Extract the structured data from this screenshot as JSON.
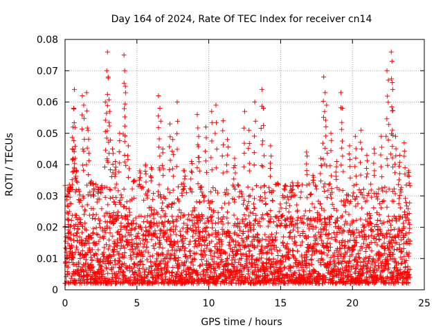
{
  "chart_data": {
    "type": "scatter",
    "title": "Day 164 of 2024, Rate Of TEC Index for receiver cn14",
    "xlabel": "GPS time / hours",
    "ylabel": "ROTI / TECUs",
    "xlim": [
      0,
      25
    ],
    "ylim": [
      0,
      0.08
    ],
    "xticks": [
      0,
      5,
      10,
      15,
      20,
      25
    ],
    "yticks": [
      0,
      0.01,
      0.02,
      0.03,
      0.04,
      0.05,
      0.06,
      0.07,
      0.08
    ],
    "xtick_labels": [
      "0",
      "5",
      "10",
      "15",
      "20",
      "25"
    ],
    "ytick_labels": [
      "0",
      "0.01",
      "0.02",
      "0.03",
      "0.04",
      "0.05",
      "0.06",
      "0.07",
      "0.08"
    ],
    "grid": true,
    "marker": "+",
    "color": "#ff0000",
    "series": [
      {
        "name": "ROTI",
        "points": [
          [
            0.1,
            0.012
          ],
          [
            0.2,
            0.018
          ],
          [
            0.3,
            0.025
          ],
          [
            0.4,
            0.032
          ],
          [
            0.5,
            0.045
          ],
          [
            0.55,
            0.052
          ],
          [
            0.6,
            0.058
          ],
          [
            0.65,
            0.064
          ],
          [
            0.7,
            0.042
          ],
          [
            0.8,
            0.038
          ],
          [
            1.0,
            0.028
          ],
          [
            1.2,
            0.062
          ],
          [
            1.3,
            0.059
          ],
          [
            1.5,
            0.063
          ],
          [
            1.6,
            0.051
          ],
          [
            1.8,
            0.034
          ],
          [
            2.0,
            0.03
          ],
          [
            2.3,
            0.029
          ],
          [
            2.5,
            0.031
          ],
          [
            2.8,
            0.06
          ],
          [
            2.9,
            0.07
          ],
          [
            2.95,
            0.076
          ],
          [
            3.0,
            0.068
          ],
          [
            3.1,
            0.057
          ],
          [
            3.3,
            0.045
          ],
          [
            3.5,
            0.041
          ],
          [
            3.8,
            0.05
          ],
          [
            4.1,
            0.075
          ],
          [
            4.15,
            0.07
          ],
          [
            4.2,
            0.065
          ],
          [
            4.4,
            0.046
          ],
          [
            4.8,
            0.035
          ],
          [
            5.2,
            0.038
          ],
          [
            5.6,
            0.04
          ],
          [
            6.0,
            0.039
          ],
          [
            6.5,
            0.062
          ],
          [
            6.6,
            0.058
          ],
          [
            6.8,
            0.045
          ],
          [
            7.3,
            0.053
          ],
          [
            7.5,
            0.048
          ],
          [
            7.8,
            0.06
          ],
          [
            8.3,
            0.038
          ],
          [
            8.8,
            0.041
          ],
          [
            9.2,
            0.056
          ],
          [
            9.3,
            0.049
          ],
          [
            9.8,
            0.052
          ],
          [
            10.2,
            0.057
          ],
          [
            10.5,
            0.059
          ],
          [
            11.0,
            0.054
          ],
          [
            11.3,
            0.048
          ],
          [
            11.8,
            0.042
          ],
          [
            12.5,
            0.057
          ],
          [
            12.8,
            0.051
          ],
          [
            13.2,
            0.06
          ],
          [
            13.7,
            0.064
          ],
          [
            13.8,
            0.058
          ],
          [
            14.3,
            0.046
          ],
          [
            14.8,
            0.034
          ],
          [
            15.3,
            0.032
          ],
          [
            15.8,
            0.031
          ],
          [
            16.2,
            0.033
          ],
          [
            16.8,
            0.044
          ],
          [
            17.3,
            0.036
          ],
          [
            17.8,
            0.042
          ],
          [
            18.0,
            0.068
          ],
          [
            18.1,
            0.063
          ],
          [
            18.2,
            0.059
          ],
          [
            18.5,
            0.05
          ],
          [
            18.9,
            0.041
          ],
          [
            19.2,
            0.063
          ],
          [
            19.3,
            0.058
          ],
          [
            19.8,
            0.046
          ],
          [
            20.2,
            0.049
          ],
          [
            20.6,
            0.051
          ],
          [
            21.0,
            0.043
          ],
          [
            21.5,
            0.045
          ],
          [
            22.0,
            0.049
          ],
          [
            22.4,
            0.07
          ],
          [
            22.5,
            0.067
          ],
          [
            22.7,
            0.076
          ],
          [
            22.75,
            0.073
          ],
          [
            22.8,
            0.064
          ],
          [
            23.0,
            0.049
          ],
          [
            23.3,
            0.043
          ],
          [
            23.6,
            0.047
          ],
          [
            23.9,
            0.038
          ]
        ],
        "baseline": {
          "x_start": 0.0,
          "x_end": 24.0,
          "x_step": 0.025,
          "dense_low": 0.002,
          "dense_high": 0.024,
          "sparse_high": 0.034
        }
      }
    ]
  }
}
